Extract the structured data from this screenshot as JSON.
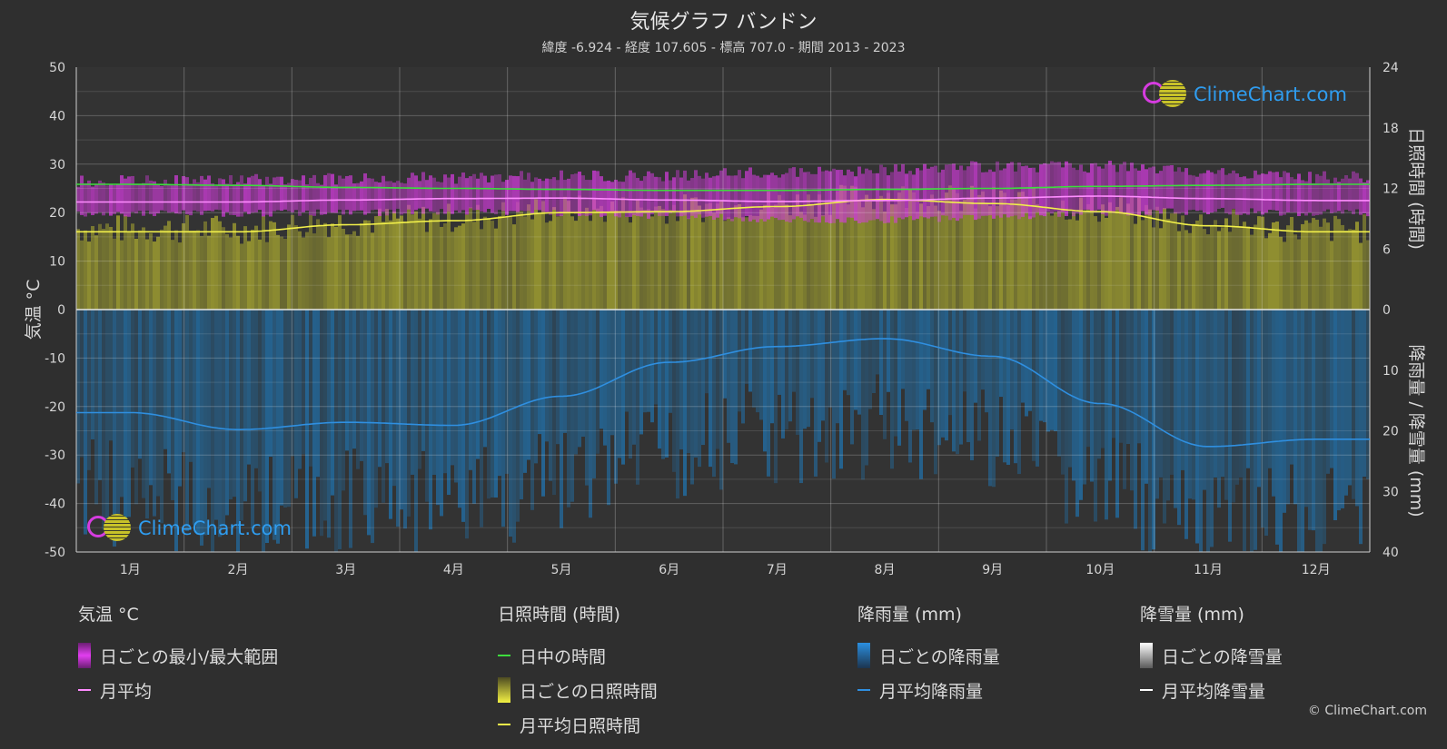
{
  "title": "気候グラフ バンドン",
  "subtitle": "緯度 -6.924 - 経度 107.605 - 標高 707.0 - 期間 2013 - 2023",
  "brand": "ClimeChart.com",
  "copyright": "© ClimeChart.com",
  "colors": {
    "background": "#2f2f2f",
    "temp_range": "#d63ce0",
    "temp_avg": "#ff8cff",
    "daylight": "#3ddc3d",
    "sunshine_fill": "#a9a830",
    "sunshine_avg": "#f2f04a",
    "rain_fill": "#1f78b8",
    "rain_avg": "#2f8fe0",
    "snow_avg": "#ffffff"
  },
  "legend": {
    "temp": {
      "title": "気温 °C",
      "range": "日ごとの最小/最大範囲",
      "avg": "月平均"
    },
    "sun": {
      "title": "日照時間 (時間)",
      "daylight": "日中の時間",
      "daily": "日ごとの日照時間",
      "avg": "月平均日照時間"
    },
    "rain": {
      "title": "降雨量 (mm)",
      "daily": "日ごとの降雨量",
      "avg": "月平均降雨量"
    },
    "snow": {
      "title": "降雪量 (mm)",
      "daily": "日ごとの降雪量",
      "avg": "月平均降雪量"
    }
  },
  "chart_data": {
    "type": "area",
    "categories": [
      "1月",
      "2月",
      "3月",
      "4月",
      "5月",
      "6月",
      "7月",
      "8月",
      "9月",
      "10月",
      "11月",
      "12月"
    ],
    "axes": {
      "left": {
        "label": "気温 °C",
        "range": [
          -50,
          50
        ],
        "ticks": [
          50,
          40,
          30,
          20,
          10,
          0,
          -10,
          -20,
          -30,
          -40,
          -50
        ]
      },
      "right_top": {
        "label": "日照時間 (時間)",
        "range": [
          0,
          24
        ],
        "ticks": [
          24,
          18,
          12,
          6,
          0
        ]
      },
      "right_bottom": {
        "label": "降雨量 / 降雪量 (mm)",
        "range": [
          0,
          40
        ],
        "ticks": [
          0,
          10,
          20,
          30,
          40
        ]
      }
    },
    "grid": true,
    "series": [
      {
        "name": "日中の時間",
        "axis": "right_top",
        "values": [
          12.4,
          12.3,
          12.1,
          12.0,
          11.9,
          11.8,
          11.8,
          11.9,
          12.0,
          12.2,
          12.3,
          12.4
        ]
      },
      {
        "name": "月平均日照時間",
        "axis": "right_top",
        "values": [
          7.7,
          7.7,
          8.4,
          8.8,
          9.6,
          9.7,
          10.2,
          10.9,
          10.5,
          9.7,
          8.3,
          7.7
        ]
      },
      {
        "name": "月平均",
        "axis": "left",
        "values": [
          22.2,
          22.2,
          22.6,
          22.9,
          23.0,
          22.6,
          22.3,
          22.5,
          23.0,
          23.4,
          22.9,
          22.5
        ]
      },
      {
        "name": "日ごとの最小/最大範囲",
        "axis": "left",
        "min": [
          19.8,
          19.9,
          20.0,
          20.2,
          20.0,
          19.4,
          18.5,
          18.5,
          19.2,
          20.0,
          20.3,
          20.0
        ],
        "max": [
          26.5,
          26.7,
          27.0,
          27.2,
          27.5,
          27.7,
          28.2,
          28.8,
          29.5,
          29.5,
          28.3,
          27.3
        ]
      },
      {
        "name": "月平均降雨量",
        "axis": "right_bottom",
        "values": [
          17.0,
          19.8,
          18.6,
          19.1,
          14.3,
          8.7,
          6.1,
          4.8,
          7.7,
          15.5,
          22.6,
          21.4
        ]
      },
      {
        "name": "月平均降雪量",
        "axis": "right_bottom",
        "values": [
          0,
          0,
          0,
          0,
          0,
          0,
          0,
          0,
          0,
          0,
          0,
          0
        ]
      }
    ]
  }
}
